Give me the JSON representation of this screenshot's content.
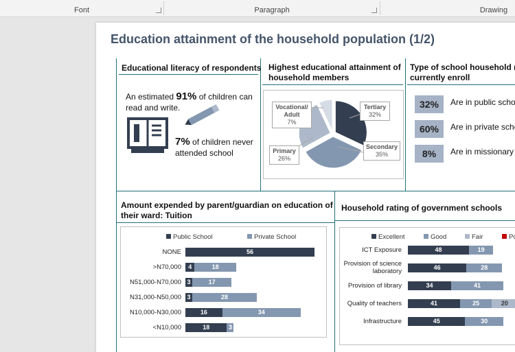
{
  "ribbon": {
    "groups": [
      "Font",
      "Paragraph",
      "Drawing"
    ]
  },
  "title": "Education attainment of the household population (1/2)",
  "literacy": {
    "heading": "Educational literacy of respondents",
    "line1_pre": "An estimated ",
    "line1_pct": "91%",
    "line1_post": " of children can",
    "line2": "read and write.",
    "line3_pct": "7%",
    "line3_post": " of children never",
    "line4": "attended school"
  },
  "attainment": {
    "heading_1": "Highest educational attainment of",
    "heading_2": "household members",
    "slices": [
      {
        "label_1": "Tertiary",
        "label_2": "",
        "pct": "32%",
        "value": 32,
        "color": "#333f50"
      },
      {
        "label_1": "Secondary",
        "label_2": "",
        "pct": "35%",
        "value": 35,
        "color": "#8497b0"
      },
      {
        "label_1": "Primary",
        "label_2": "",
        "pct": "26%",
        "value": 26,
        "color": "#adb9ca"
      },
      {
        "label_1": "Vocational/",
        "label_2": "Adult",
        "pct": "7%",
        "value": 7,
        "color": "#d6dce5"
      }
    ]
  },
  "school_type": {
    "heading_1": "Type of school household me",
    "heading_2": "currently enroll",
    "items": [
      {
        "pct": "32%",
        "text": "Are in public schoo"
      },
      {
        "pct": "60%",
        "text": "Are in private scho"
      },
      {
        "pct": "8%",
        "text": "Are in missionary s"
      }
    ]
  },
  "tuition": {
    "heading_1": "Amount expended by parent/guardian on education of",
    "heading_2": "their ward: Tuition",
    "legend": [
      {
        "name": "Public School",
        "color": "#333f50"
      },
      {
        "name": "Private School",
        "color": "#8497b0"
      }
    ]
  },
  "rating": {
    "heading": "Household rating of government schools",
    "legend": [
      {
        "name": "Excellent",
        "color": "#333f50"
      },
      {
        "name": "Good",
        "color": "#8497b0"
      },
      {
        "name": "Fair",
        "color": "#adb9ca"
      },
      {
        "name": "Po",
        "color": "#c00000"
      }
    ]
  },
  "chart_data": [
    {
      "type": "pie",
      "title": "Highest educational attainment of household members",
      "categories": [
        "Tertiary",
        "Secondary",
        "Primary",
        "Vocational/Adult"
      ],
      "values": [
        32,
        35,
        26,
        7
      ]
    },
    {
      "type": "bar",
      "title": "Amount expended by parent/guardian on education of their ward: Tuition",
      "categories": [
        "NONE",
        ">N70,000",
        "N51,000-N70,000",
        "N31,000-N50,000",
        "N10,000-N30,000",
        "<N10,000"
      ],
      "series": [
        {
          "name": "Public School",
          "values": [
            56,
            4,
            3,
            3,
            16,
            18
          ]
        },
        {
          "name": "Private School",
          "values": [
            0,
            18,
            17,
            28,
            34,
            3
          ]
        }
      ]
    },
    {
      "type": "bar",
      "title": "Household rating of government schools",
      "categories": [
        "ICT Exposure",
        "Provision of science laboratory",
        "Provision of library",
        "Quality of teachers",
        "Infrastructure"
      ],
      "series": [
        {
          "name": "Excellent",
          "values": [
            48,
            46,
            34,
            41,
            45
          ]
        },
        {
          "name": "Good",
          "values": [
            19,
            28,
            41,
            25,
            30
          ]
        },
        {
          "name": "Fair",
          "values": [
            null,
            null,
            null,
            20,
            null
          ]
        }
      ]
    }
  ]
}
